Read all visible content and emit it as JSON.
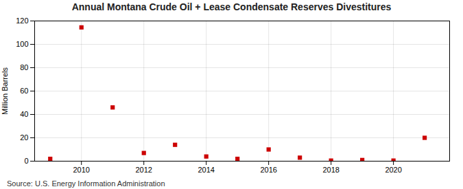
{
  "chart_data": {
    "type": "scatter",
    "title": "Annual Montana Crude Oil + Lease Condensate Reserves Divestitures",
    "ylabel": "Million Barrels",
    "source": "Source: U.S. Energy Information Administration",
    "x": [
      2009,
      2010,
      2011,
      2012,
      2013,
      2014,
      2015,
      2016,
      2017,
      2018,
      2019,
      2020,
      2021
    ],
    "values": [
      2.0,
      114.5,
      46.0,
      7.0,
      14.0,
      4.0,
      2.0,
      10.0,
      3.0,
      0.5,
      1.0,
      0.5,
      20.0
    ],
    "color": "#cc0000",
    "marker": "square",
    "xlim": [
      2008.5,
      2021.8
    ],
    "ylim": [
      0,
      120
    ],
    "xticks": [
      2010,
      2012,
      2014,
      2016,
      2018,
      2020
    ],
    "yticks": [
      0,
      20,
      40,
      60,
      80,
      100,
      120
    ],
    "grid": true
  }
}
